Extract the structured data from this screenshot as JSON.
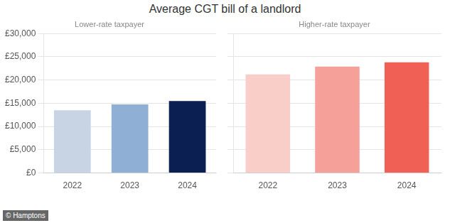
{
  "chart_data": [
    {
      "type": "bar",
      "title": "Average CGT bill of a landlord",
      "subtitle": "Lower-rate taxpayer",
      "categories": [
        "2022",
        "2023",
        "2024"
      ],
      "values": [
        13500,
        14750,
        15500
      ],
      "colors": [
        "#c8d4e3",
        "#8fafd4",
        "#0c1f52"
      ],
      "ylim": [
        0,
        30000
      ],
      "yticks": [
        {
          "value": 0,
          "label": "£0"
        },
        {
          "value": 5000,
          "label": "£5,000"
        },
        {
          "value": 10000,
          "label": "£10,000"
        },
        {
          "value": 15000,
          "label": "£15,000"
        },
        {
          "value": 20000,
          "label": "£20,000"
        },
        {
          "value": 25000,
          "label": "£25,000"
        },
        {
          "value": 30000,
          "label": "£30,000"
        }
      ],
      "grid": true,
      "annotations": [
        "© Hamptons"
      ]
    },
    {
      "type": "bar",
      "subtitle": "Higher-rate taxpayer",
      "categories": [
        "2022",
        "2023",
        "2024"
      ],
      "values": [
        21200,
        22900,
        23800
      ],
      "colors": [
        "#f9cdc8",
        "#f5a098",
        "#f06055"
      ],
      "ylim": [
        0,
        30000
      ],
      "yticks": [
        0,
        5000,
        10000,
        15000,
        20000,
        25000,
        30000
      ],
      "grid": true,
      "tick_labels": "x"
    }
  ]
}
